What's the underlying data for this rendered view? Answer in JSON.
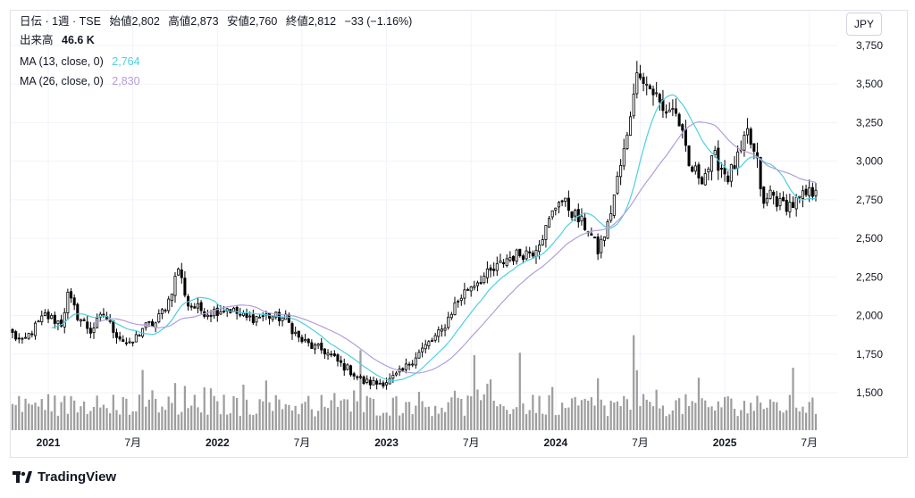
{
  "header": {
    "symbol": "日伝 · 1週 · TSE",
    "open_label": "始値",
    "open": "2,802",
    "high_label": "高値",
    "high": "2,873",
    "low_label": "安値",
    "low": "2,760",
    "close_label": "終値",
    "close": "2,812",
    "change": "−33 (−1.16%)",
    "volume_label": "出来高",
    "volume": "46.6 K",
    "ma1_label": "MA (13, close, 0)",
    "ma1_value": "2,764",
    "ma2_label": "MA (26, close, 0)",
    "ma2_value": "2,830"
  },
  "currency": "JPY",
  "brand": "TradingView",
  "colors": {
    "ma1": "#4dd0e1",
    "ma2": "#b39ddb",
    "candle": "#000000",
    "volume": "#9e9e9e",
    "grid": "#f0f3fa"
  },
  "chart_data": {
    "type": "candlestick",
    "y_axis": {
      "range": [
        1300,
        3800
      ],
      "ticks": [
        1500,
        1750,
        2000,
        2250,
        2500,
        2750,
        3000,
        3250,
        3500,
        3750
      ],
      "tick_labels": [
        "1,500",
        "1,750",
        "2,000",
        "2,250",
        "2,500",
        "2,750",
        "3,000",
        "3,250",
        "3,500",
        "3,750"
      ]
    },
    "x_axis": {
      "labels": [
        {
          "text": "2021",
          "week": 11,
          "bold": true
        },
        {
          "text": "7月",
          "week": 37,
          "bold": false
        },
        {
          "text": "2022",
          "week": 63,
          "bold": true
        },
        {
          "text": "7月",
          "week": 89,
          "bold": false
        },
        {
          "text": "2023",
          "week": 115,
          "bold": true
        },
        {
          "text": "7月",
          "week": 141,
          "bold": false
        },
        {
          "text": "2024",
          "week": 167,
          "bold": true
        },
        {
          "text": "7月",
          "week": 193,
          "bold": false
        },
        {
          "text": "2025",
          "week": 219,
          "bold": true
        },
        {
          "text": "7月",
          "week": 245,
          "bold": false
        }
      ]
    },
    "anchors": [
      [
        0,
        1880
      ],
      [
        3,
        1820
      ],
      [
        6,
        1900
      ],
      [
        10,
        2000
      ],
      [
        15,
        1950
      ],
      [
        17,
        2130
      ],
      [
        20,
        2000
      ],
      [
        24,
        1900
      ],
      [
        28,
        2010
      ],
      [
        32,
        1880
      ],
      [
        36,
        1800
      ],
      [
        40,
        1920
      ],
      [
        44,
        1950
      ],
      [
        48,
        2100
      ],
      [
        51,
        2310
      ],
      [
        54,
        2070
      ],
      [
        60,
        2020
      ],
      [
        66,
        2050
      ],
      [
        72,
        1980
      ],
      [
        78,
        2000
      ],
      [
        84,
        1980
      ],
      [
        88,
        1850
      ],
      [
        92,
        1800
      ],
      [
        96,
        1770
      ],
      [
        100,
        1700
      ],
      [
        104,
        1640
      ],
      [
        108,
        1570
      ],
      [
        112,
        1560
      ],
      [
        116,
        1580
      ],
      [
        120,
        1640
      ],
      [
        124,
        1740
      ],
      [
        128,
        1820
      ],
      [
        132,
        1900
      ],
      [
        136,
        2070
      ],
      [
        140,
        2180
      ],
      [
        144,
        2240
      ],
      [
        148,
        2290
      ],
      [
        152,
        2370
      ],
      [
        156,
        2400
      ],
      [
        160,
        2420
      ],
      [
        164,
        2560
      ],
      [
        168,
        2760
      ],
      [
        171,
        2700
      ],
      [
        174,
        2620
      ],
      [
        177,
        2560
      ],
      [
        180,
        2420
      ],
      [
        183,
        2580
      ],
      [
        186,
        2880
      ],
      [
        189,
        3150
      ],
      [
        191,
        3480
      ],
      [
        193,
        3600
      ],
      [
        195,
        3500
      ],
      [
        198,
        3420
      ],
      [
        200,
        3320
      ],
      [
        203,
        3350
      ],
      [
        205,
        3250
      ],
      [
        208,
        2960
      ],
      [
        212,
        2900
      ],
      [
        216,
        3020
      ],
      [
        220,
        2900
      ],
      [
        224,
        3050
      ],
      [
        226,
        3180
      ],
      [
        229,
        2980
      ],
      [
        231,
        2700
      ],
      [
        233,
        2800
      ],
      [
        236,
        2720
      ],
      [
        240,
        2720
      ],
      [
        244,
        2780
      ],
      [
        247,
        2812
      ]
    ],
    "weeks": 248,
    "series": [
      {
        "name": "MA (13, close, 0)",
        "period": 13
      },
      {
        "name": "MA (26, close, 0)",
        "period": 26
      }
    ],
    "volume_peaks": [
      [
        107,
        3.2
      ],
      [
        142,
        3.0
      ],
      [
        156,
        3.1
      ],
      [
        191,
        3.8
      ],
      [
        192,
        2.4
      ],
      [
        211,
        2.1
      ],
      [
        240,
        2.5
      ]
    ]
  }
}
